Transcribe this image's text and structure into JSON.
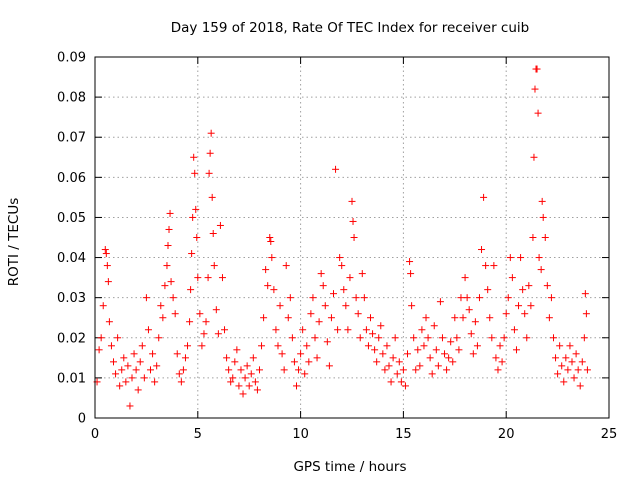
{
  "chart_data": {
    "type": "scatter",
    "title": "Day 159 of 2018, Rate Of TEC Index for receiver cuib",
    "xlabel": "GPS time / hours",
    "ylabel": "ROTI / TECUs",
    "xlim": [
      0,
      25
    ],
    "ylim": [
      0,
      0.09
    ],
    "x_ticks": [
      0,
      5,
      10,
      15,
      20,
      25
    ],
    "x_tick_labels": [
      "0",
      "5",
      "10",
      "15",
      "20",
      "25"
    ],
    "y_ticks": [
      0,
      0.01,
      0.02,
      0.03,
      0.04,
      0.05,
      0.06,
      0.07,
      0.08,
      0.09
    ],
    "y_tick_labels": [
      "0",
      "0.01",
      "0.02",
      "0.03",
      "0.04",
      "0.05",
      "0.06",
      "0.07",
      "0.08",
      "0.09"
    ],
    "grid": true,
    "marker": "+",
    "color": "#ff0000",
    "series": [
      {
        "name": "ROTI",
        "points": [
          [
            0.1,
            0.009
          ],
          [
            0.2,
            0.017
          ],
          [
            0.3,
            0.02
          ],
          [
            0.4,
            0.028
          ],
          [
            0.5,
            0.042
          ],
          [
            0.55,
            0.041
          ],
          [
            0.6,
            0.038
          ],
          [
            0.65,
            0.034
          ],
          [
            0.7,
            0.024
          ],
          [
            0.8,
            0.018
          ],
          [
            0.9,
            0.014
          ],
          [
            1.0,
            0.011
          ],
          [
            1.1,
            0.02
          ],
          [
            1.2,
            0.008
          ],
          [
            1.3,
            0.012
          ],
          [
            1.4,
            0.015
          ],
          [
            1.5,
            0.009
          ],
          [
            1.6,
            0.013
          ],
          [
            1.7,
            0.003
          ],
          [
            1.8,
            0.01
          ],
          [
            1.9,
            0.016
          ],
          [
            2.0,
            0.012
          ],
          [
            2.1,
            0.007
          ],
          [
            2.2,
            0.014
          ],
          [
            2.3,
            0.018
          ],
          [
            2.4,
            0.01
          ],
          [
            2.5,
            0.03
          ],
          [
            2.6,
            0.022
          ],
          [
            2.7,
            0.012
          ],
          [
            2.8,
            0.016
          ],
          [
            2.9,
            0.009
          ],
          [
            3.0,
            0.013
          ],
          [
            3.1,
            0.02
          ],
          [
            3.2,
            0.028
          ],
          [
            3.3,
            0.025
          ],
          [
            3.4,
            0.033
          ],
          [
            3.5,
            0.038
          ],
          [
            3.55,
            0.043
          ],
          [
            3.6,
            0.047
          ],
          [
            3.65,
            0.051
          ],
          [
            3.7,
            0.034
          ],
          [
            3.8,
            0.03
          ],
          [
            3.9,
            0.026
          ],
          [
            4.0,
            0.016
          ],
          [
            4.1,
            0.011
          ],
          [
            4.2,
            0.009
          ],
          [
            4.3,
            0.012
          ],
          [
            4.4,
            0.015
          ],
          [
            4.5,
            0.018
          ],
          [
            4.6,
            0.024
          ],
          [
            4.65,
            0.032
          ],
          [
            4.7,
            0.041
          ],
          [
            4.75,
            0.05
          ],
          [
            4.8,
            0.065
          ],
          [
            4.85,
            0.061
          ],
          [
            4.9,
            0.052
          ],
          [
            4.95,
            0.045
          ],
          [
            5.0,
            0.035
          ],
          [
            5.1,
            0.026
          ],
          [
            5.2,
            0.018
          ],
          [
            5.3,
            0.021
          ],
          [
            5.4,
            0.024
          ],
          [
            5.5,
            0.035
          ],
          [
            5.55,
            0.061
          ],
          [
            5.6,
            0.066
          ],
          [
            5.65,
            0.071
          ],
          [
            5.7,
            0.055
          ],
          [
            5.75,
            0.046
          ],
          [
            5.8,
            0.038
          ],
          [
            5.9,
            0.027
          ],
          [
            6.0,
            0.021
          ],
          [
            6.1,
            0.048
          ],
          [
            6.2,
            0.035
          ],
          [
            6.3,
            0.022
          ],
          [
            6.4,
            0.015
          ],
          [
            6.5,
            0.012
          ],
          [
            6.6,
            0.009
          ],
          [
            6.7,
            0.01
          ],
          [
            6.8,
            0.014
          ],
          [
            6.9,
            0.017
          ],
          [
            7.0,
            0.008
          ],
          [
            7.1,
            0.012
          ],
          [
            7.2,
            0.006
          ],
          [
            7.3,
            0.01
          ],
          [
            7.4,
            0.013
          ],
          [
            7.5,
            0.008
          ],
          [
            7.6,
            0.011
          ],
          [
            7.7,
            0.015
          ],
          [
            7.8,
            0.009
          ],
          [
            7.9,
            0.007
          ],
          [
            8.0,
            0.012
          ],
          [
            8.1,
            0.018
          ],
          [
            8.2,
            0.025
          ],
          [
            8.3,
            0.037
          ],
          [
            8.4,
            0.033
          ],
          [
            8.5,
            0.045
          ],
          [
            8.55,
            0.044
          ],
          [
            8.6,
            0.04
          ],
          [
            8.7,
            0.032
          ],
          [
            8.8,
            0.022
          ],
          [
            8.9,
            0.018
          ],
          [
            9.0,
            0.028
          ],
          [
            9.1,
            0.016
          ],
          [
            9.2,
            0.012
          ],
          [
            9.3,
            0.038
          ],
          [
            9.4,
            0.025
          ],
          [
            9.5,
            0.03
          ],
          [
            9.6,
            0.02
          ],
          [
            9.7,
            0.014
          ],
          [
            9.8,
            0.008
          ],
          [
            9.9,
            0.012
          ],
          [
            10.0,
            0.016
          ],
          [
            10.1,
            0.022
          ],
          [
            10.2,
            0.011
          ],
          [
            10.3,
            0.018
          ],
          [
            10.4,
            0.014
          ],
          [
            10.5,
            0.026
          ],
          [
            10.6,
            0.03
          ],
          [
            10.7,
            0.02
          ],
          [
            10.8,
            0.015
          ],
          [
            10.9,
            0.024
          ],
          [
            11.0,
            0.036
          ],
          [
            11.1,
            0.033
          ],
          [
            11.2,
            0.028
          ],
          [
            11.3,
            0.019
          ],
          [
            11.4,
            0.013
          ],
          [
            11.5,
            0.025
          ],
          [
            11.6,
            0.031
          ],
          [
            11.7,
            0.062
          ],
          [
            11.8,
            0.022
          ],
          [
            11.9,
            0.04
          ],
          [
            12.0,
            0.038
          ],
          [
            12.1,
            0.032
          ],
          [
            12.2,
            0.028
          ],
          [
            12.3,
            0.022
          ],
          [
            12.4,
            0.035
          ],
          [
            12.5,
            0.054
          ],
          [
            12.55,
            0.049
          ],
          [
            12.6,
            0.045
          ],
          [
            12.7,
            0.03
          ],
          [
            12.8,
            0.026
          ],
          [
            12.9,
            0.02
          ],
          [
            13.0,
            0.036
          ],
          [
            13.1,
            0.03
          ],
          [
            13.2,
            0.022
          ],
          [
            13.3,
            0.018
          ],
          [
            13.4,
            0.025
          ],
          [
            13.5,
            0.021
          ],
          [
            13.6,
            0.017
          ],
          [
            13.7,
            0.014
          ],
          [
            13.8,
            0.02
          ],
          [
            13.9,
            0.023
          ],
          [
            14.0,
            0.016
          ],
          [
            14.1,
            0.012
          ],
          [
            14.2,
            0.018
          ],
          [
            14.3,
            0.013
          ],
          [
            14.4,
            0.009
          ],
          [
            14.5,
            0.015
          ],
          [
            14.6,
            0.02
          ],
          [
            14.7,
            0.011
          ],
          [
            14.8,
            0.014
          ],
          [
            14.9,
            0.009
          ],
          [
            15.0,
            0.012
          ],
          [
            15.1,
            0.008
          ],
          [
            15.2,
            0.016
          ],
          [
            15.3,
            0.039
          ],
          [
            15.35,
            0.036
          ],
          [
            15.4,
            0.028
          ],
          [
            15.5,
            0.02
          ],
          [
            15.6,
            0.012
          ],
          [
            15.7,
            0.017
          ],
          [
            15.8,
            0.013
          ],
          [
            15.9,
            0.022
          ],
          [
            16.0,
            0.018
          ],
          [
            16.1,
            0.025
          ],
          [
            16.2,
            0.02
          ],
          [
            16.3,
            0.015
          ],
          [
            16.4,
            0.011
          ],
          [
            16.5,
            0.023
          ],
          [
            16.6,
            0.017
          ],
          [
            16.7,
            0.013
          ],
          [
            16.8,
            0.029
          ],
          [
            16.9,
            0.02
          ],
          [
            17.0,
            0.016
          ],
          [
            17.1,
            0.012
          ],
          [
            17.2,
            0.015
          ],
          [
            17.3,
            0.019
          ],
          [
            17.4,
            0.014
          ],
          [
            17.5,
            0.025
          ],
          [
            17.6,
            0.02
          ],
          [
            17.7,
            0.017
          ],
          [
            17.8,
            0.03
          ],
          [
            17.9,
            0.025
          ],
          [
            18.0,
            0.035
          ],
          [
            18.1,
            0.03
          ],
          [
            18.2,
            0.027
          ],
          [
            18.3,
            0.021
          ],
          [
            18.4,
            0.016
          ],
          [
            18.5,
            0.024
          ],
          [
            18.6,
            0.018
          ],
          [
            18.7,
            0.03
          ],
          [
            18.8,
            0.042
          ],
          [
            18.9,
            0.055
          ],
          [
            19.0,
            0.038
          ],
          [
            19.1,
            0.032
          ],
          [
            19.2,
            0.025
          ],
          [
            19.3,
            0.02
          ],
          [
            19.4,
            0.038
          ],
          [
            19.5,
            0.015
          ],
          [
            19.6,
            0.012
          ],
          [
            19.7,
            0.018
          ],
          [
            19.8,
            0.014
          ],
          [
            19.9,
            0.02
          ],
          [
            20.0,
            0.026
          ],
          [
            20.1,
            0.03
          ],
          [
            20.2,
            0.04
          ],
          [
            20.3,
            0.035
          ],
          [
            20.4,
            0.022
          ],
          [
            20.5,
            0.017
          ],
          [
            20.6,
            0.028
          ],
          [
            20.7,
            0.04
          ],
          [
            20.8,
            0.032
          ],
          [
            20.9,
            0.026
          ],
          [
            21.0,
            0.02
          ],
          [
            21.1,
            0.033
          ],
          [
            21.2,
            0.028
          ],
          [
            21.3,
            0.045
          ],
          [
            21.35,
            0.065
          ],
          [
            21.4,
            0.082
          ],
          [
            21.45,
            0.087
          ],
          [
            21.5,
            0.087
          ],
          [
            21.55,
            0.076
          ],
          [
            21.6,
            0.04
          ],
          [
            21.7,
            0.037
          ],
          [
            21.75,
            0.054
          ],
          [
            21.8,
            0.05
          ],
          [
            21.9,
            0.045
          ],
          [
            22.0,
            0.033
          ],
          [
            22.1,
            0.025
          ],
          [
            22.2,
            0.03
          ],
          [
            22.3,
            0.02
          ],
          [
            22.4,
            0.015
          ],
          [
            22.5,
            0.011
          ],
          [
            22.6,
            0.018
          ],
          [
            22.7,
            0.013
          ],
          [
            22.8,
            0.009
          ],
          [
            22.9,
            0.015
          ],
          [
            23.0,
            0.012
          ],
          [
            23.1,
            0.018
          ],
          [
            23.2,
            0.014
          ],
          [
            23.3,
            0.01
          ],
          [
            23.4,
            0.016
          ],
          [
            23.5,
            0.012
          ],
          [
            23.6,
            0.008
          ],
          [
            23.7,
            0.014
          ],
          [
            23.8,
            0.02
          ],
          [
            23.85,
            0.031
          ],
          [
            23.9,
            0.026
          ],
          [
            23.95,
            0.012
          ]
        ]
      }
    ]
  }
}
